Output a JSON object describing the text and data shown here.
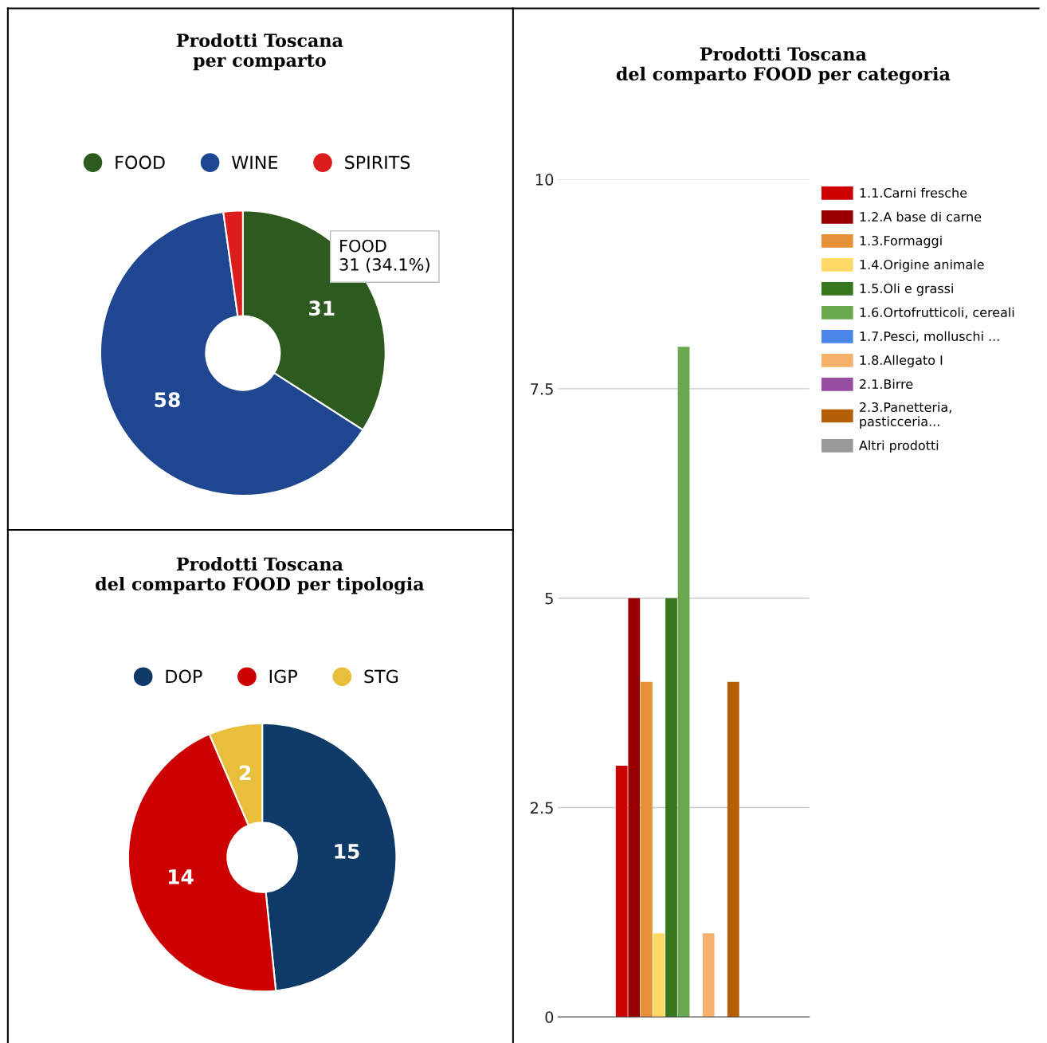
{
  "chart_data": [
    {
      "type": "donut",
      "title": "Prodotti Toscana\nper comparto",
      "categories": [
        "FOOD",
        "WINE",
        "SPIRITS"
      ],
      "values": [
        31,
        58,
        2
      ],
      "colors": [
        "#2d5a1e",
        "#1f4690",
        "#dd1c1c"
      ],
      "value_labels": [
        "31",
        "58",
        null
      ],
      "legend": "top",
      "annotations": [
        "FOOD\n31 (34.1%)"
      ]
    },
    {
      "type": "donut",
      "title": "Prodotti Toscana\ndel comparto FOOD per tipologia",
      "categories": [
        "DOP",
        "IGP",
        "STG"
      ],
      "values": [
        15,
        14,
        2
      ],
      "colors": [
        "#0d3a66",
        "#cc0000",
        "#e8bf3a"
      ],
      "data_labels": true,
      "legend": "top"
    },
    {
      "type": "bar",
      "title": "Prodotti Toscana\ndel comparto FOOD per categoria",
      "categories": [
        null
      ],
      "ylim": [
        0,
        10
      ],
      "yticks": [
        0,
        2.5,
        5,
        7.5,
        10
      ],
      "grid": "y",
      "legend": "right",
      "series": [
        {
          "name": "1.1.Carni fresche",
          "color": "#cc0000",
          "values": [
            3
          ]
        },
        {
          "name": "1.2.A base di carne",
          "color": "#990000",
          "values": [
            5
          ]
        },
        {
          "name": "1.3.Formaggi",
          "color": "#e69138",
          "values": [
            4
          ]
        },
        {
          "name": "1.4.Origine animale",
          "color": "#ffd966",
          "values": [
            1
          ]
        },
        {
          "name": "1.5.Oli e grassi",
          "color": "#38761d",
          "values": [
            5
          ]
        },
        {
          "name": "1.6.Ortofrutticoli, cereali",
          "color": "#6aa84f",
          "values": [
            8
          ]
        },
        {
          "name": "1.7.Pesci, molluschi ...",
          "color": "#4a86e8",
          "values": [
            0
          ]
        },
        {
          "name": "1.8.Allegato I",
          "color": "#f6b26b",
          "values": [
            1
          ]
        },
        {
          "name": "2.1.Birre",
          "color": "#974ea0",
          "values": [
            0
          ]
        },
        {
          "name": "2.3.Panetteria,\npasticceria...",
          "color": "#b45f06",
          "values": [
            4
          ]
        },
        {
          "name": "Altri prodotti",
          "color": "#999999",
          "values": [
            0
          ]
        }
      ]
    }
  ]
}
